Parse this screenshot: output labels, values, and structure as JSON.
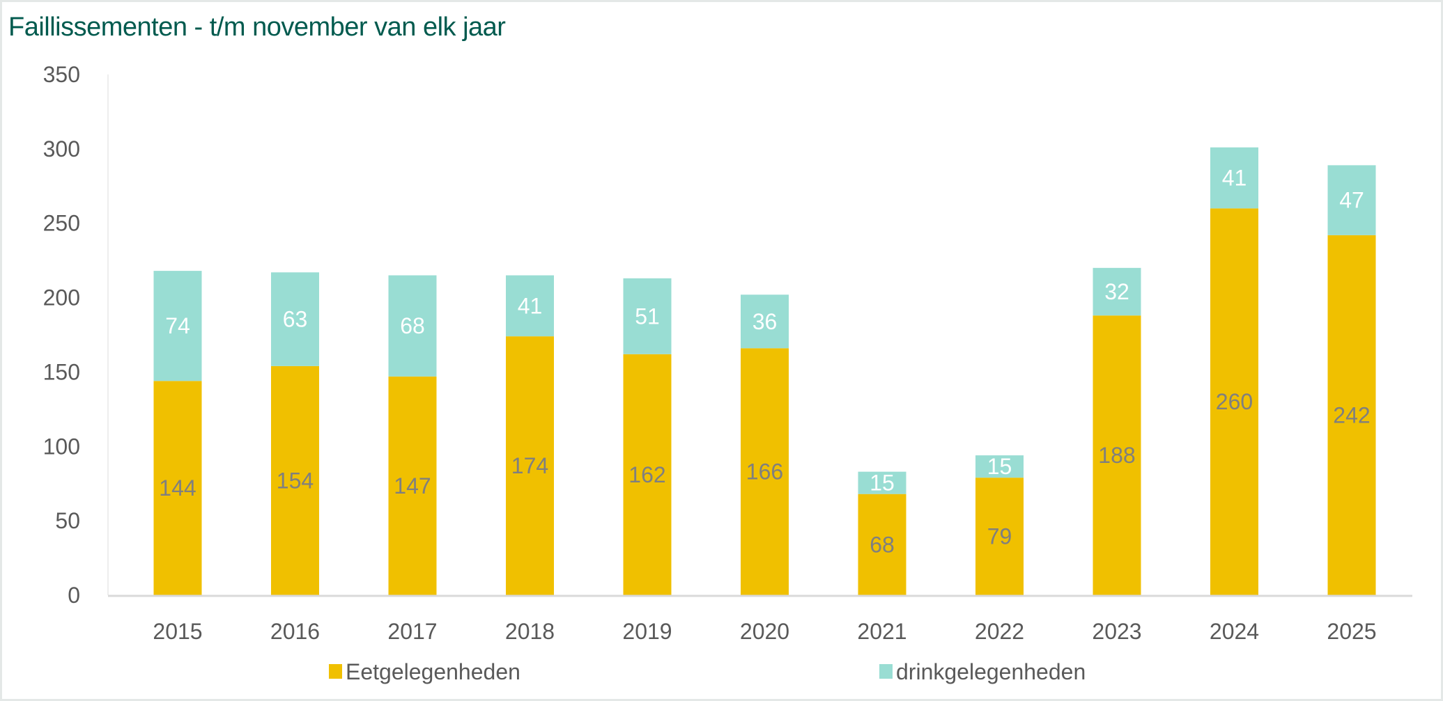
{
  "chart_data": {
    "type": "bar",
    "stacked": true,
    "title": "Faillissementen  - t/m november van elk jaar",
    "xlabel": "",
    "ylabel": "",
    "ylim": [
      0,
      350
    ],
    "yticks": [
      0,
      50,
      100,
      150,
      200,
      250,
      300,
      350
    ],
    "grid": false,
    "legend": "bottom",
    "categories": [
      "2015",
      "2016",
      "2017",
      "2018",
      "2019",
      "2020",
      "2021",
      "2022",
      "2023",
      "2024",
      "2025"
    ],
    "series": [
      {
        "name": "Eetgelegenheden",
        "color": "#f0c000",
        "label_color": "#7f7f7f",
        "values": [
          144,
          154,
          147,
          174,
          162,
          166,
          68,
          79,
          188,
          260,
          242
        ]
      },
      {
        "name": "drinkgelegenheden",
        "color": "#99ddd3",
        "label_color": "#ffffff",
        "values": [
          74,
          63,
          68,
          41,
          51,
          36,
          15,
          15,
          32,
          41,
          47
        ]
      }
    ]
  }
}
